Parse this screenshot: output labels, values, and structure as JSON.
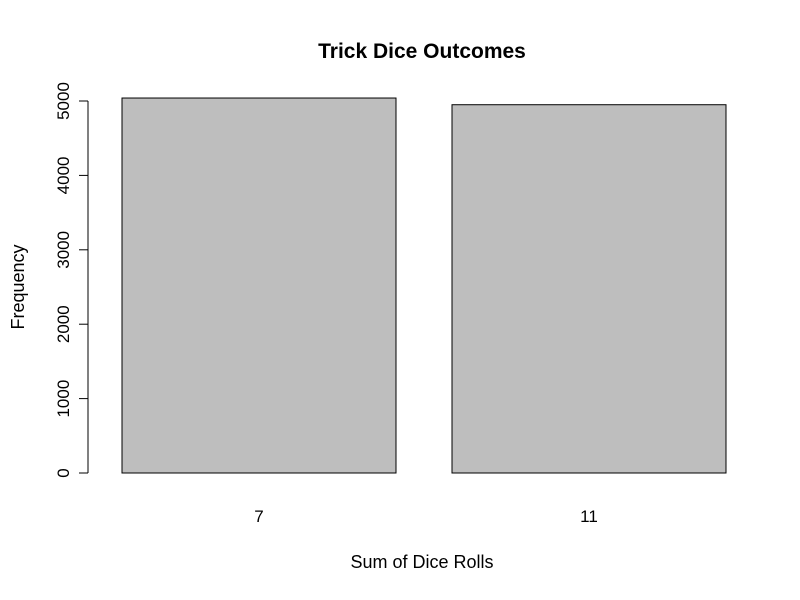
{
  "chart_data": {
    "type": "bar",
    "title": "Trick Dice Outcomes",
    "xlabel": "Sum of Dice Rolls",
    "ylabel": "Frequency",
    "categories": [
      "7",
      "11"
    ],
    "values": [
      5040,
      4950
    ],
    "ylim": [
      0,
      5000
    ],
    "yticks": [
      "0",
      "1000",
      "2000",
      "3000",
      "4000",
      "5000"
    ],
    "bar_color": "#bebebe",
    "border_color": "#000000",
    "grid": false,
    "legend": "none"
  }
}
